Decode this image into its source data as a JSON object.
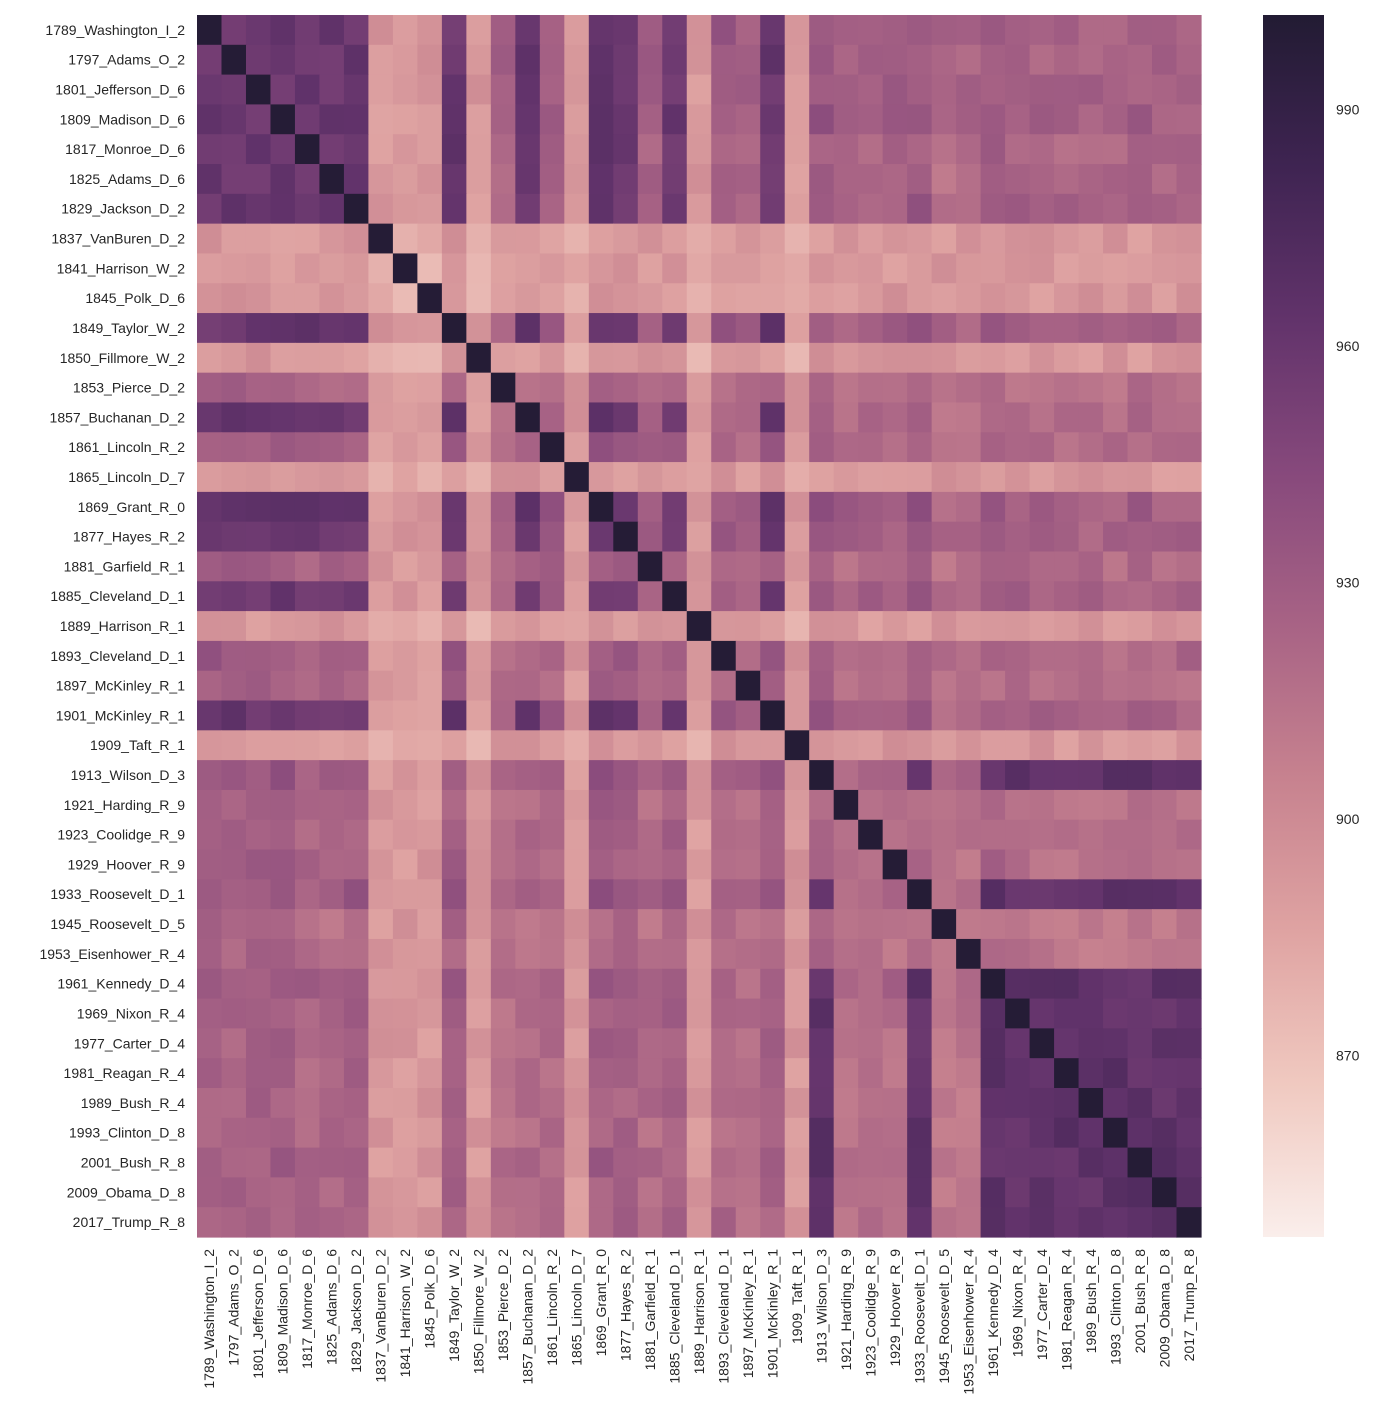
{
  "chart_data": {
    "type": "heatmap",
    "title": "",
    "xlabel": "",
    "ylabel": "",
    "labels": [
      "1789_Washington_I_2",
      "1797_Adams_O_2",
      "1801_Jefferson_D_6",
      "1809_Madison_D_6",
      "1817_Monroe_D_6",
      "1825_Adams_D_6",
      "1829_Jackson_D_2",
      "1837_VanBuren_D_2",
      "1841_Harrison_W_2",
      "1845_Polk_D_6",
      "1849_Taylor_W_2",
      "1850_Fillmore_W_2",
      "1853_Pierce_D_2",
      "1857_Buchanan_D_2",
      "1861_Lincoln_R_2",
      "1865_Lincoln_D_7",
      "1869_Grant_R_0",
      "1877_Hayes_R_2",
      "1881_Garfield_R_1",
      "1885_Cleveland_D_1",
      "1889_Harrison_R_1",
      "1893_Cleveland_D_1",
      "1897_McKinley_R_1",
      "1901_McKinley_R_1",
      "1909_Taft_R_1",
      "1913_Wilson_D_3",
      "1921_Harding_R_9",
      "1923_Coolidge_R_9",
      "1929_Hoover_R_9",
      "1933_Roosevelt_D_1",
      "1945_Roosevelt_D_5",
      "1953_Eisenhower_R_4",
      "1961_Kennedy_D_4",
      "1969_Nixon_R_4",
      "1977_Carter_D_4",
      "1981_Reagan_R_4",
      "1989_Bush_R_4",
      "1993_Clinton_D_8",
      "2001_Bush_R_8",
      "2009_Obama_D_8",
      "2017_Trump_R_8"
    ],
    "colorbar": {
      "min": 847,
      "max": 1002,
      "ticks": [
        870,
        900,
        930,
        960,
        990
      ]
    },
    "row_base": [
      938,
      935,
      935,
      940,
      928,
      928,
      935,
      913,
      912,
      910,
      940,
      905,
      915,
      925,
      925,
      905,
      940,
      935,
      922,
      935,
      887,
      928,
      915,
      935,
      890,
      930,
      915,
      915,
      920,
      930,
      905,
      910,
      925,
      918,
      915,
      912,
      915,
      912,
      918,
      912,
      915
    ],
    "early": [
      0,
      1,
      2,
      3,
      4,
      5,
      6,
      10,
      13,
      16,
      17,
      19,
      23
    ],
    "modern": [
      25,
      29,
      32,
      33,
      34,
      35,
      36,
      37,
      38,
      39,
      40
    ],
    "light": [
      7,
      8,
      9,
      11,
      15,
      20,
      24
    ],
    "modern_value": 965,
    "early_value": 960,
    "light_value": 880,
    "diagonal_value": 1000,
    "colors": [
      "#faeeeb",
      "#f0c9c0",
      "#dfa3a2",
      "#c7828f",
      "#a86385",
      "#87497c",
      "#62336b",
      "#3f2452",
      "#221b33"
    ]
  }
}
